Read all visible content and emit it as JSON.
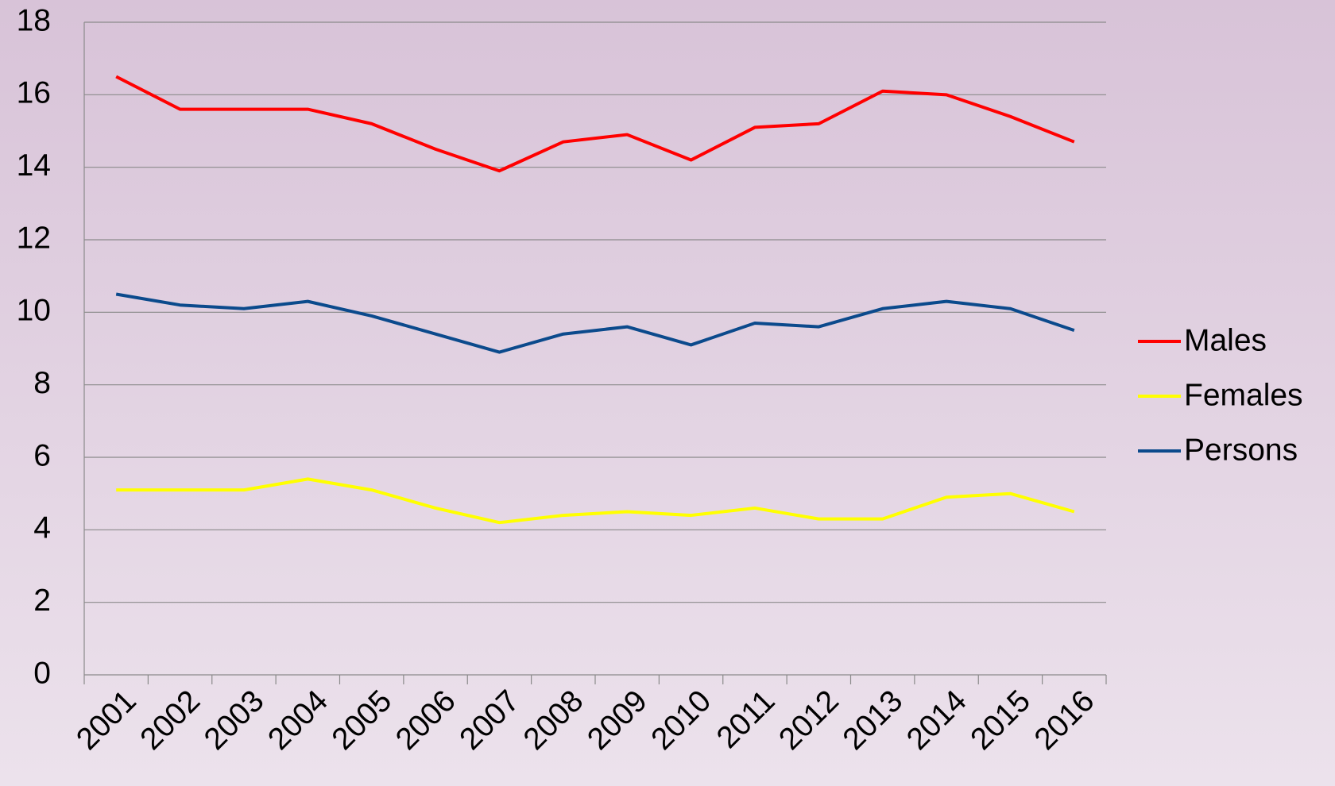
{
  "chart_data": {
    "type": "line",
    "categories": [
      "2001",
      "2002",
      "2003",
      "2004",
      "2005",
      "2006",
      "2007",
      "2008",
      "2009",
      "2010",
      "2011",
      "2012",
      "2013",
      "2014",
      "2015",
      "2016"
    ],
    "series": [
      {
        "name": "Males",
        "color": "#ff0000",
        "values": [
          16.5,
          15.6,
          15.6,
          15.6,
          15.2,
          14.5,
          13.9,
          14.7,
          14.9,
          14.2,
          15.1,
          15.2,
          16.1,
          16.0,
          15.4,
          14.7
        ]
      },
      {
        "name": "Females",
        "color": "#ffff00",
        "values": [
          5.1,
          5.1,
          5.1,
          5.4,
          5.1,
          4.6,
          4.2,
          4.4,
          4.5,
          4.4,
          4.6,
          4.3,
          4.3,
          4.9,
          5.0,
          4.5
        ]
      },
      {
        "name": "Persons",
        "color": "#0b4a8c",
        "values": [
          10.5,
          10.2,
          10.1,
          10.3,
          9.9,
          9.4,
          8.9,
          9.4,
          9.6,
          9.1,
          9.7,
          9.6,
          10.1,
          10.3,
          10.1,
          9.5
        ]
      }
    ],
    "ylim": [
      0,
      18
    ],
    "yticks": [
      0,
      2,
      4,
      6,
      8,
      10,
      12,
      14,
      16,
      18
    ],
    "grid": true,
    "legend": "right"
  }
}
